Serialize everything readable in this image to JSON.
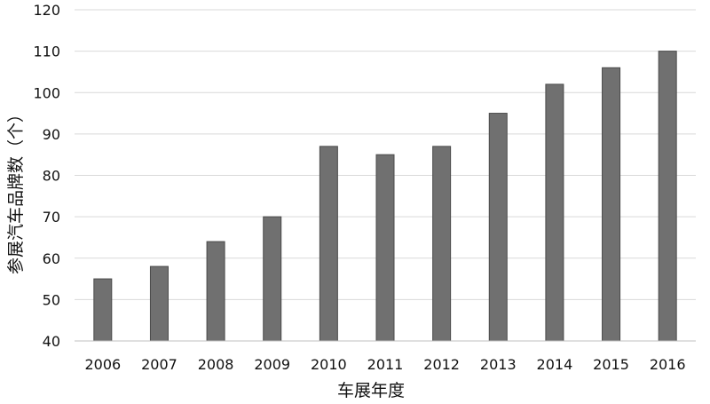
{
  "chart_data": {
    "type": "bar",
    "categories": [
      "2006",
      "2007",
      "2008",
      "2009",
      "2010",
      "2011",
      "2012",
      "2013",
      "2014",
      "2015",
      "2016"
    ],
    "values": [
      55,
      58,
      64,
      70,
      87,
      85,
      87,
      95,
      102,
      106,
      110
    ],
    "title": "",
    "xlabel": "车展年度",
    "ylabel": "参展汽车品牌数（个）",
    "ylim": [
      40,
      120
    ],
    "yticks": [
      40,
      50,
      60,
      70,
      80,
      90,
      100,
      110,
      120
    ],
    "grid": true,
    "legend": "none",
    "colors": {
      "bar_fill": "#707070",
      "bar_stroke": "#4a4a4a",
      "grid": "#d9d9d9",
      "axis": "#bfbfbf",
      "text": "#111111"
    }
  }
}
